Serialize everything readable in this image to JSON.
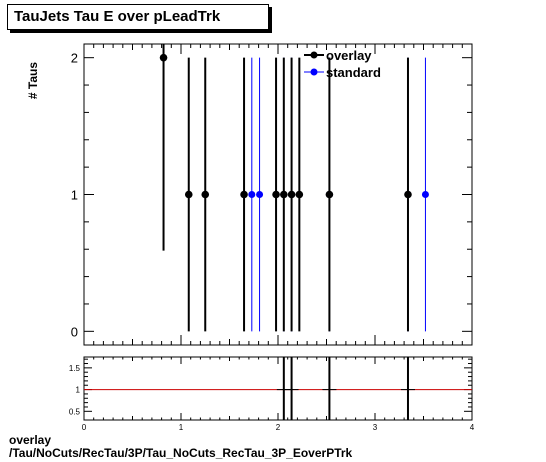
{
  "title": "TauJets Tau E over pLeadTrk",
  "footer": {
    "line1": "overlay",
    "line2": "/Tau/NoCuts/RecTau/3P/Tau_NoCuts_RecTau_3P_EoverPTrk"
  },
  "colors": {
    "overlay": "#000000",
    "standard": "#0000ff",
    "ratio_line": "#cc0000"
  },
  "chart_data": [
    {
      "type": "scatter",
      "title": "TauJets Tau E over pLeadTrk",
      "ylabel": "# Taus",
      "xlim": [
        0,
        4
      ],
      "ylim": [
        -0.1,
        2.1
      ],
      "x_ticks": [
        "0",
        "1",
        "2",
        "3",
        "4"
      ],
      "y_ticks": [
        "0",
        "1",
        "2"
      ],
      "legend": {
        "position": "top-right",
        "entries": [
          "overlay",
          "standard"
        ]
      },
      "series": [
        {
          "name": "overlay",
          "points": [
            {
              "x": 0.82,
              "y": 2,
              "err": 1.41
            },
            {
              "x": 1.08,
              "y": 1,
              "err": 1
            },
            {
              "x": 1.25,
              "y": 1,
              "err": 1
            },
            {
              "x": 1.65,
              "y": 1,
              "err": 1
            },
            {
              "x": 1.98,
              "y": 1,
              "err": 1
            },
            {
              "x": 2.06,
              "y": 1,
              "err": 1
            },
            {
              "x": 2.14,
              "y": 1,
              "err": 1
            },
            {
              "x": 2.22,
              "y": 1,
              "err": 1
            },
            {
              "x": 2.53,
              "y": 1,
              "err": 1
            },
            {
              "x": 3.34,
              "y": 1,
              "err": 1
            }
          ]
        },
        {
          "name": "standard",
          "points": [
            {
              "x": 1.73,
              "y": 1,
              "err": 1
            },
            {
              "x": 1.81,
              "y": 1,
              "err": 1
            },
            {
              "x": 2.06,
              "y": 1,
              "err": 1
            },
            {
              "x": 2.14,
              "y": 1,
              "err": 1
            },
            {
              "x": 2.53,
              "y": 1,
              "err": 1
            },
            {
              "x": 3.34,
              "y": 1,
              "err": 1
            },
            {
              "x": 3.52,
              "y": 1,
              "err": 1
            }
          ]
        }
      ]
    },
    {
      "type": "scatter",
      "xlim": [
        0,
        4
      ],
      "ylim": [
        0.3,
        1.75
      ],
      "x_ticks": [
        "0",
        "1",
        "2",
        "3",
        "4"
      ],
      "y_ticks": [
        "0.5",
        "1",
        "1.5"
      ],
      "reference_line": 1,
      "series": [
        {
          "name": "ratio",
          "points": [
            {
              "x": 2.06,
              "y": 1,
              "err": 1.41
            },
            {
              "x": 2.14,
              "y": 1,
              "err": 1.41
            },
            {
              "x": 2.53,
              "y": 1,
              "err": 1.41
            },
            {
              "x": 3.34,
              "y": 1,
              "err": 1.41
            }
          ]
        }
      ]
    }
  ]
}
